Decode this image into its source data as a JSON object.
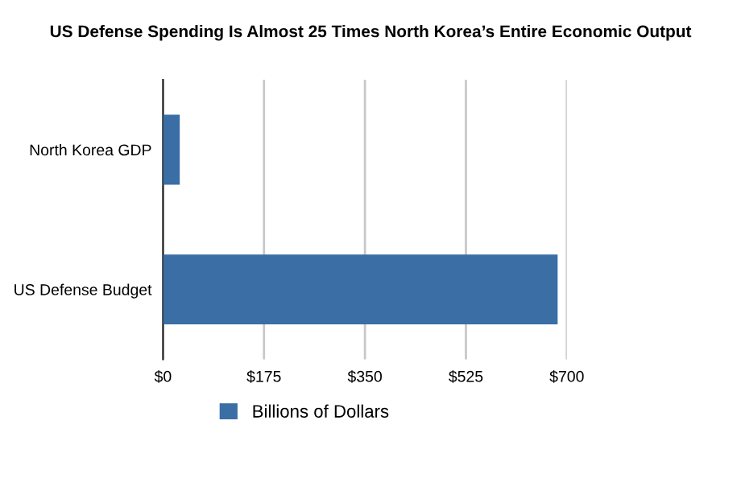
{
  "chart_data": {
    "type": "bar",
    "orientation": "horizontal",
    "title": "US Defense Spending Is Almost 25 Times North Korea’s Entire Economic Output",
    "categories": [
      "North Korea GDP",
      "US Defense Budget"
    ],
    "series": [
      {
        "name": "Billions of Dollars",
        "color": "#3a6ea5",
        "values": [
          29,
          684
        ]
      }
    ],
    "xlim": [
      0,
      700
    ],
    "xticks": [
      {
        "value": 0,
        "label": "$0"
      },
      {
        "value": 175,
        "label": "$175"
      },
      {
        "value": 350,
        "label": "$350"
      },
      {
        "value": 525,
        "label": "$525"
      },
      {
        "value": 700,
        "label": "$700"
      }
    ],
    "grid": "x",
    "legend": "bottom"
  }
}
